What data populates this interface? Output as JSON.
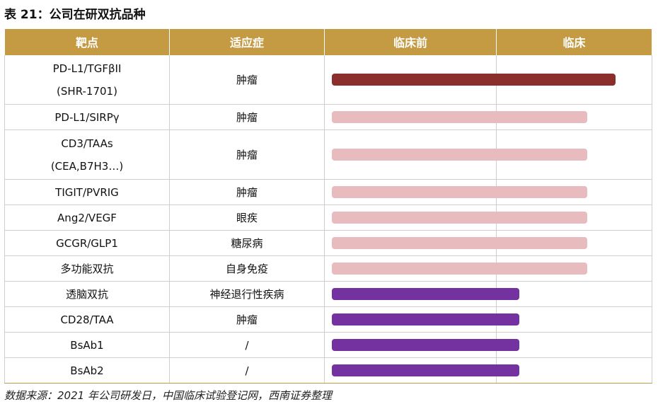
{
  "title": "表 21：公司在研双抗品种",
  "headers": [
    "靶点",
    "适应症",
    "临床前",
    "临床"
  ],
  "colors": {
    "header": "#c49a42",
    "clinical": "#8b2f2c",
    "preclinical_pink": "#e8bcbe",
    "preclinical_purple": "#7432a0"
  },
  "rows": [
    {
      "target": "PD-L1/TGFβII",
      "target_sub": "(SHR-1701)",
      "indication": "肿瘤",
      "stage": "临床",
      "progress": 1.0,
      "color": "#8b2f2c"
    },
    {
      "target": "PD-L1/SIRPγ",
      "target_sub": "",
      "indication": "肿瘤",
      "stage": "临床前",
      "progress": 0.9,
      "color": "#e8bcbe"
    },
    {
      "target": "CD3/TAAs",
      "target_sub": "(CEA,B7H3…)",
      "indication": "肿瘤",
      "stage": "临床前",
      "progress": 0.9,
      "color": "#e8bcbe"
    },
    {
      "target": "TIGIT/PVRIG",
      "target_sub": "",
      "indication": "肿瘤",
      "stage": "临床前",
      "progress": 0.9,
      "color": "#e8bcbe"
    },
    {
      "target": "Ang2/VEGF",
      "target_sub": "",
      "indication": "眼疾",
      "stage": "临床前",
      "progress": 0.9,
      "color": "#e8bcbe"
    },
    {
      "target": "GCGR/GLP1",
      "target_sub": "",
      "indication": "糖尿病",
      "stage": "临床前",
      "progress": 0.9,
      "color": "#e8bcbe"
    },
    {
      "target": "多功能双抗",
      "target_sub": "",
      "indication": "自身免疫",
      "stage": "临床前",
      "progress": 0.9,
      "color": "#e8bcbe"
    },
    {
      "target": "透脑双抗",
      "target_sub": "",
      "indication": "神经退行性疾病",
      "stage": "临床前",
      "progress": 0.66,
      "color": "#7432a0"
    },
    {
      "target": "CD28/TAA",
      "target_sub": "",
      "indication": "肿瘤",
      "stage": "临床前",
      "progress": 0.66,
      "color": "#7432a0"
    },
    {
      "target": "BsAb1",
      "target_sub": "",
      "indication": "/",
      "stage": "临床前",
      "progress": 0.66,
      "color": "#7432a0"
    },
    {
      "target": "BsAb2",
      "target_sub": "",
      "indication": "/",
      "stage": "临床前",
      "progress": 0.66,
      "color": "#7432a0"
    }
  ],
  "source": "数据来源：2021 年公司研发日，中国临床试验登记网，西南证券整理"
}
